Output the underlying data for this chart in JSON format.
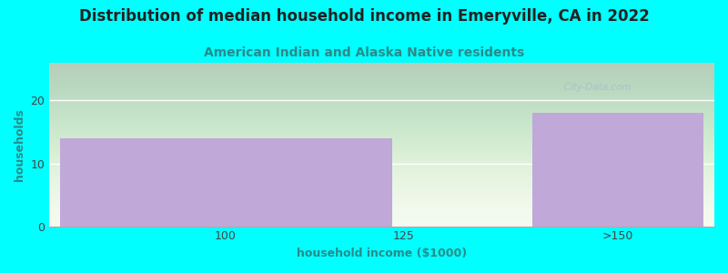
{
  "title": "Distribution of median household income in Emeryville, CA in 2022",
  "subtitle": "American Indian and Alaska Native residents",
  "xlabel": "household income ($1000)",
  "ylabel": "households",
  "categories": [
    "100",
    "125",
    ">150"
  ],
  "values": [
    14,
    0,
    18
  ],
  "bar_color": "#c0a8d8",
  "ylim": [
    0,
    26
  ],
  "yticks": [
    0,
    10,
    20
  ],
  "background_color": "#00ffff",
  "plot_bg_color": "#eef5e8",
  "title_color": "#222222",
  "subtitle_color": "#2a8a8a",
  "axis_label_color": "#2a8a8a",
  "tick_color": "#444444",
  "watermark": "  City-Data.com",
  "title_fontsize": 12,
  "subtitle_fontsize": 10,
  "label_fontsize": 9,
  "tick_fontsize": 9
}
